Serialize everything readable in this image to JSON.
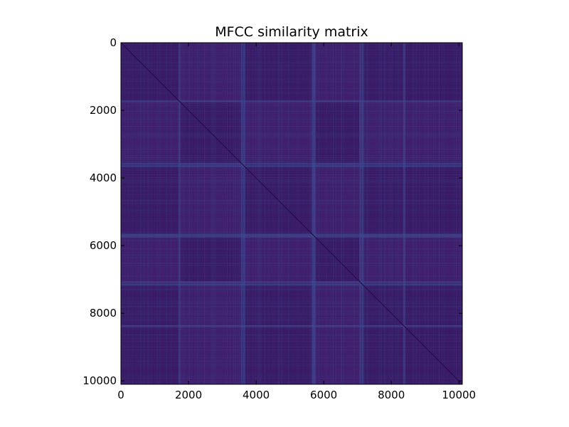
{
  "chart_data": {
    "type": "heatmap",
    "title": "MFCC similarity matrix",
    "xlabel": "",
    "ylabel": "",
    "xlim": [
      0,
      10100
    ],
    "ylim": [
      10100,
      0
    ],
    "xticks": [
      "0",
      "2000",
      "4000",
      "6000",
      "8000",
      "10000"
    ],
    "yticks": [
      "0",
      "2000",
      "4000",
      "6000",
      "8000",
      "10000"
    ],
    "colormap": "viridis",
    "base_color": "#40206e",
    "block_color": "#3a1b66",
    "band_color": "#3d4f93",
    "diagonal_color": "#2a0c4d",
    "block_boundaries": [
      0,
      1750,
      3550,
      5650,
      7050,
      10100
    ],
    "light_bands": [
      1700,
      3550,
      3620,
      5650,
      5700,
      7050,
      7120,
      8350
    ]
  }
}
